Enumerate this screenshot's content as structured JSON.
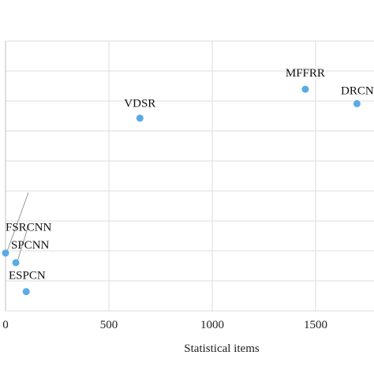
{
  "chart_data": {
    "type": "scatter",
    "title": "",
    "xlabel": "Statistical items",
    "ylabel": "",
    "xlim": [
      0,
      1800
    ],
    "ylim": [
      28.4,
      31.2
    ],
    "x_ticks": [
      0,
      500,
      1000,
      1500
    ],
    "x_tick_labels": [
      "0",
      "500",
      "1000",
      "1500"
    ],
    "grid": true,
    "color": "#5aabe6",
    "points": [
      {
        "label": "FSRCNN",
        "x": 0,
        "y": 29.0
      },
      {
        "label": "SPCNN",
        "x": 50,
        "y": 28.9
      },
      {
        "label": "ESPCN",
        "x": 100,
        "y": 28.6
      },
      {
        "label": "VDSR",
        "x": 650,
        "y": 30.4
      },
      {
        "label": "MFFRR",
        "x": 1450,
        "y": 30.7
      },
      {
        "label": "DRCN",
        "x": 1700,
        "y": 30.55
      }
    ]
  }
}
